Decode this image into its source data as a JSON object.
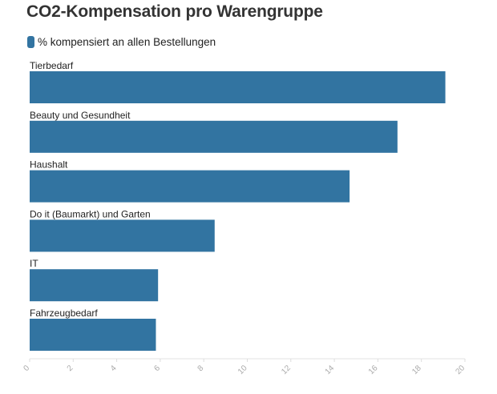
{
  "chart_data": {
    "type": "bar",
    "orientation": "horizontal",
    "title": "CO2-Kompensation pro Warengruppe",
    "categories": [
      "Tierbedarf",
      "Beauty und Gesundheit",
      "Haushalt",
      "Do it (Baumarkt) und Garten",
      "IT",
      "Fahrzeugbedarf"
    ],
    "series": [
      {
        "name": "% kompensiert an allen Bestellungen",
        "values": [
          19.1,
          16.9,
          14.7,
          8.5,
          5.9,
          5.8
        ]
      }
    ],
    "xlim": [
      0,
      20
    ],
    "xticks": [
      "0",
      "2",
      "4",
      "6",
      "8",
      "10",
      "12",
      "14",
      "16",
      "18",
      "20"
    ],
    "grid": false,
    "legend_position": "top-left",
    "bar_color": "#3274a1"
  }
}
